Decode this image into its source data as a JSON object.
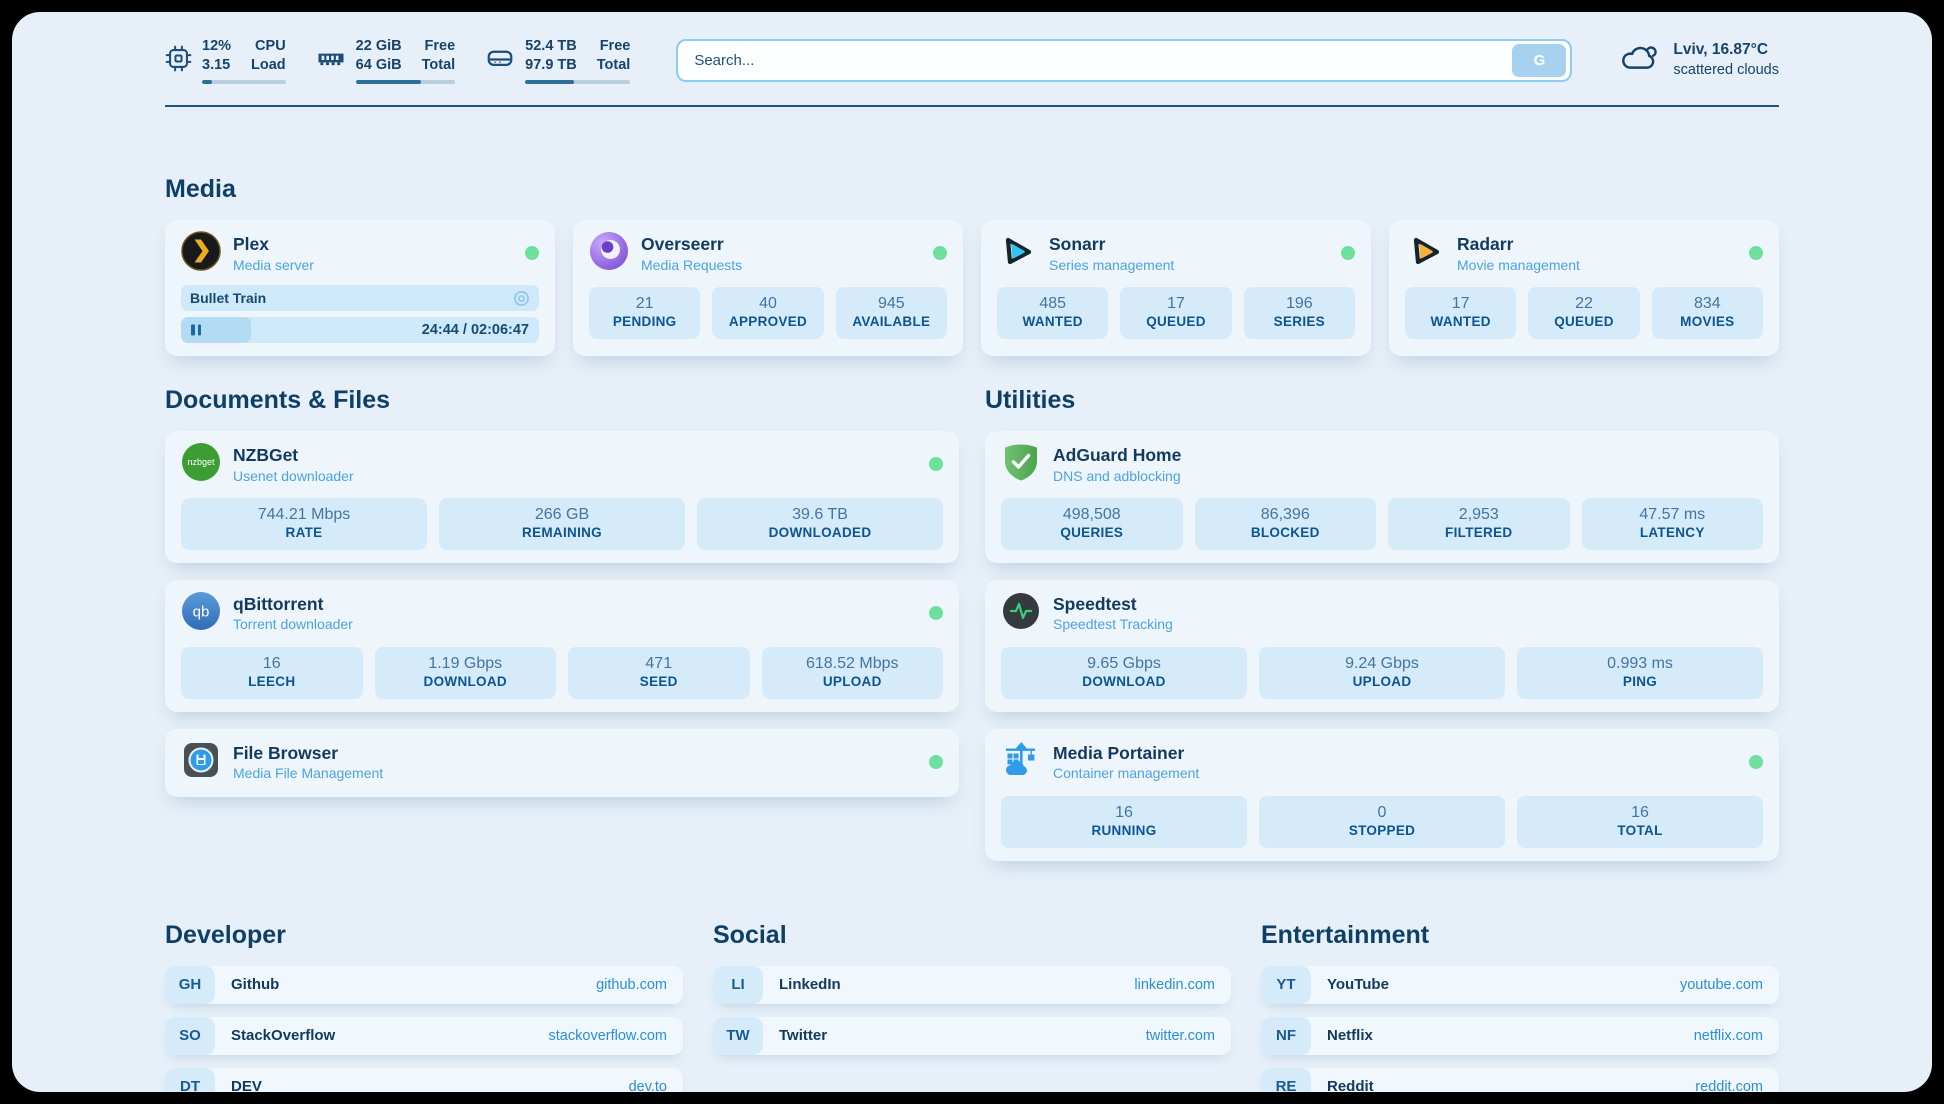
{
  "colors": {
    "accent": "#2c8ed8",
    "status_online": "#6fdf9e",
    "divider": "#20567d"
  },
  "header": {
    "system_stats": [
      {
        "icon": "cpu-icon",
        "value_top": "12%",
        "value_bottom": "3.15",
        "label_top": "CPU",
        "label_bottom": "Load",
        "progress_pct": 12
      },
      {
        "icon": "ram-icon",
        "value_top": "22 GiB",
        "value_bottom": "64 GiB",
        "label_top": "Free",
        "label_bottom": "Total",
        "progress_pct": 66
      },
      {
        "icon": "disk-icon",
        "value_top": "52.4 TB",
        "value_bottom": "97.9 TB",
        "label_top": "Free",
        "label_bottom": "Total",
        "progress_pct": 46
      }
    ],
    "search": {
      "placeholder": "Search...",
      "button_label": "G"
    },
    "weather": {
      "icon": "cloud-icon",
      "location_temp": "Lviv, 16.87°C",
      "condition": "scattered clouds"
    }
  },
  "sections": {
    "media": {
      "title": "Media",
      "cards": [
        {
          "name": "Plex",
          "subtitle": "Media server",
          "icon": "plex-icon",
          "status": "online",
          "now_playing": {
            "title": "Bullet Train",
            "time": "24:44 / 02:06:47",
            "progress_pct": 19.5
          }
        },
        {
          "name": "Overseerr",
          "subtitle": "Media Requests",
          "icon": "overseerr-icon",
          "status": "online",
          "stats": [
            {
              "value": "21",
              "label": "PENDING"
            },
            {
              "value": "40",
              "label": "APPROVED"
            },
            {
              "value": "945",
              "label": "AVAILABLE"
            }
          ]
        },
        {
          "name": "Sonarr",
          "subtitle": "Series management",
          "icon": "sonarr-icon",
          "status": "online",
          "stats": [
            {
              "value": "485",
              "label": "WANTED"
            },
            {
              "value": "17",
              "label": "QUEUED"
            },
            {
              "value": "196",
              "label": "SERIES"
            }
          ]
        },
        {
          "name": "Radarr",
          "subtitle": "Movie management",
          "icon": "radarr-icon",
          "status": "online",
          "stats": [
            {
              "value": "17",
              "label": "WANTED"
            },
            {
              "value": "22",
              "label": "QUEUED"
            },
            {
              "value": "834",
              "label": "MOVIES"
            }
          ]
        }
      ]
    },
    "documents": {
      "title": "Documents & Files",
      "cards": [
        {
          "name": "NZBGet",
          "subtitle": "Usenet downloader",
          "icon": "nzbget-icon",
          "status": "online",
          "stats": [
            {
              "value": "744.21 Mbps",
              "label": "RATE"
            },
            {
              "value": "266 GB",
              "label": "REMAINING"
            },
            {
              "value": "39.6 TB",
              "label": "DOWNLOADED"
            }
          ]
        },
        {
          "name": "qBittorrent",
          "subtitle": "Torrent downloader",
          "icon": "qbittorrent-icon",
          "status": "online",
          "stats": [
            {
              "value": "16",
              "label": "LEECH"
            },
            {
              "value": "1.19 Gbps",
              "label": "DOWNLOAD"
            },
            {
              "value": "471",
              "label": "SEED"
            },
            {
              "value": "618.52 Mbps",
              "label": "UPLOAD"
            }
          ]
        },
        {
          "name": "File Browser",
          "subtitle": "Media File Management",
          "icon": "filebrowser-icon",
          "status": "online"
        }
      ]
    },
    "utilities": {
      "title": "Utilities",
      "cards": [
        {
          "name": "AdGuard Home",
          "subtitle": "DNS and adblocking",
          "icon": "adguard-icon",
          "stats": [
            {
              "value": "498,508",
              "label": "QUERIES"
            },
            {
              "value": "86,396",
              "label": "BLOCKED"
            },
            {
              "value": "2,953",
              "label": "FILTERED"
            },
            {
              "value": "47.57 ms",
              "label": "LATENCY"
            }
          ]
        },
        {
          "name": "Speedtest",
          "subtitle": "Speedtest Tracking",
          "icon": "speedtest-icon",
          "stats": [
            {
              "value": "9.65 Gbps",
              "label": "DOWNLOAD"
            },
            {
              "value": "9.24 Gbps",
              "label": "UPLOAD"
            },
            {
              "value": "0.993 ms",
              "label": "PING"
            }
          ]
        },
        {
          "name": "Media Portainer",
          "subtitle": "Container management",
          "icon": "portainer-icon",
          "status": "online",
          "stats": [
            {
              "value": "16",
              "label": "RUNNING"
            },
            {
              "value": "0",
              "label": "STOPPED"
            },
            {
              "value": "16",
              "label": "TOTAL"
            }
          ]
        }
      ]
    },
    "developer": {
      "title": "Developer",
      "links": [
        {
          "abbr": "GH",
          "name": "Github",
          "url": "github.com"
        },
        {
          "abbr": "SO",
          "name": "StackOverflow",
          "url": "stackoverflow.com"
        },
        {
          "abbr": "DT",
          "name": "DEV",
          "url": "dev.to"
        }
      ]
    },
    "social": {
      "title": "Social",
      "links": [
        {
          "abbr": "LI",
          "name": "LinkedIn",
          "url": "linkedin.com"
        },
        {
          "abbr": "TW",
          "name": "Twitter",
          "url": "twitter.com"
        }
      ]
    },
    "entertainment": {
      "title": "Entertainment",
      "links": [
        {
          "abbr": "YT",
          "name": "YouTube",
          "url": "youtube.com"
        },
        {
          "abbr": "NF",
          "name": "Netflix",
          "url": "netflix.com"
        },
        {
          "abbr": "RE",
          "name": "Reddit",
          "url": "reddit.com"
        }
      ]
    }
  }
}
